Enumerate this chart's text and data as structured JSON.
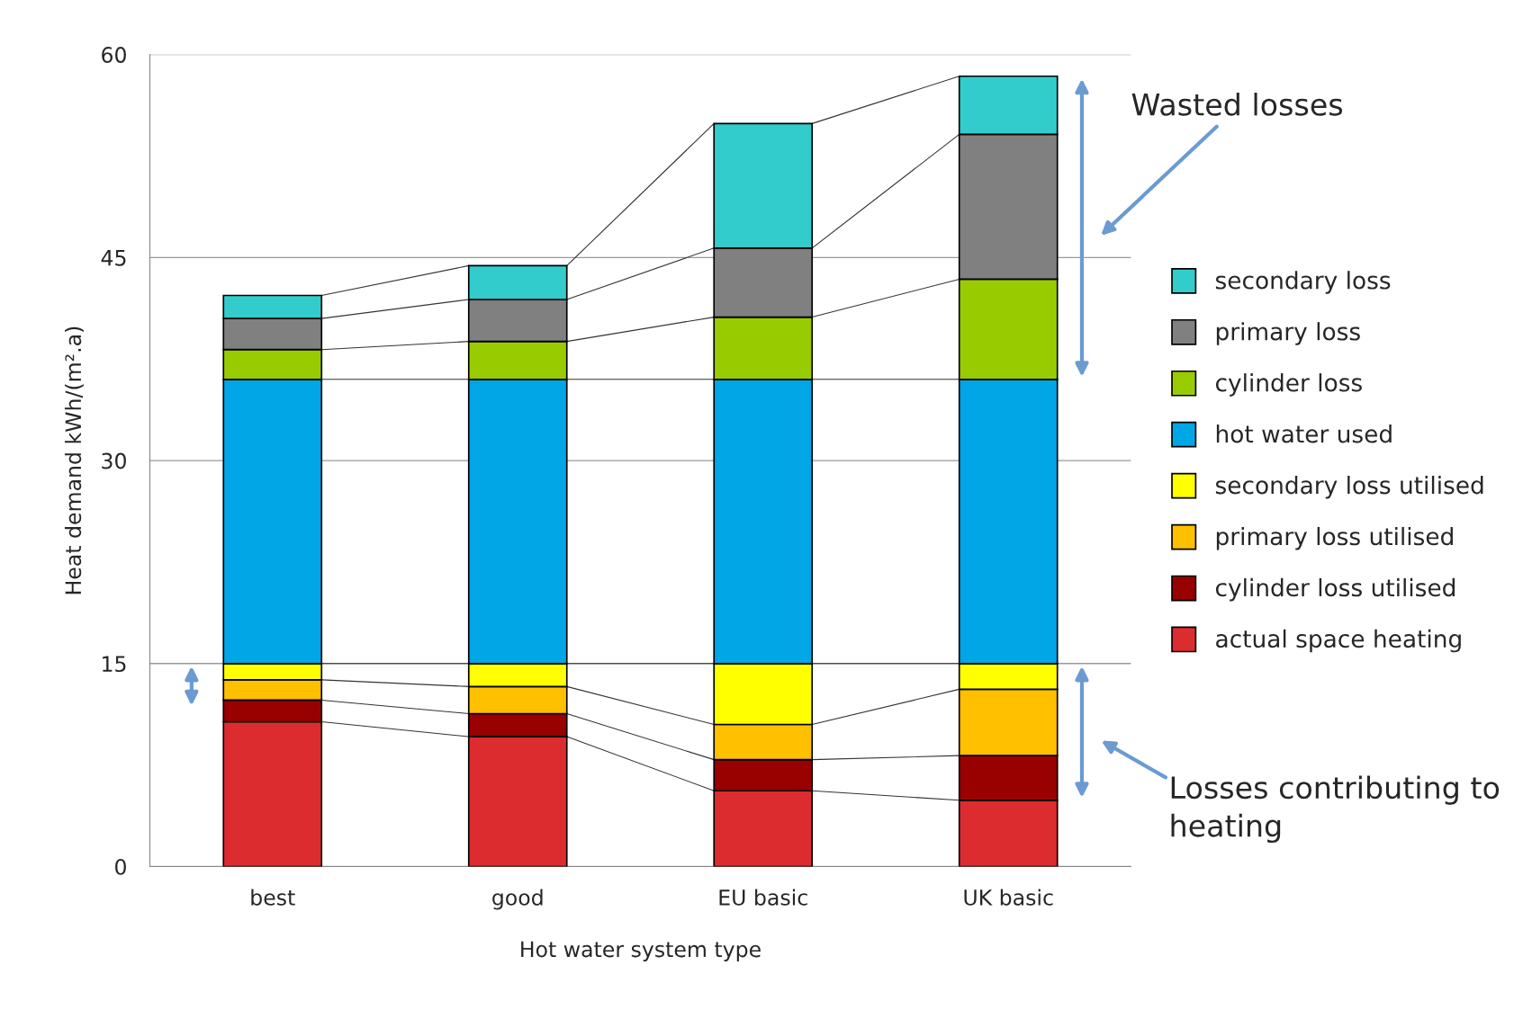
{
  "chart_data": {
    "type": "bar",
    "stacked": true,
    "xlabel": "Hot water system type",
    "ylabel": "Heat demand kWh/(m².a)",
    "categories": [
      "best",
      "good",
      "EU basic",
      "UK basic"
    ],
    "series": [
      {
        "name": "actual space heating",
        "color": "#dd2c2f",
        "values": [
          10.7,
          9.6,
          5.6,
          4.9
        ]
      },
      {
        "name": "cylinder loss utilised",
        "color": "#990000",
        "values": [
          1.6,
          1.7,
          2.3,
          3.3
        ]
      },
      {
        "name": "primary loss utilised",
        "color": "#ffc000",
        "values": [
          1.5,
          2.0,
          2.6,
          4.9
        ]
      },
      {
        "name": "secondary loss utilised",
        "color": "#ffff00",
        "values": [
          1.2,
          1.7,
          4.5,
          1.9
        ]
      },
      {
        "name": "hot water used",
        "color": "#00a6e6",
        "values": [
          21.0,
          21.0,
          21.0,
          21.0
        ]
      },
      {
        "name": "cylinder loss",
        "color": "#99cc00",
        "values": [
          2.2,
          2.8,
          4.6,
          7.4
        ]
      },
      {
        "name": "primary loss",
        "color": "#808080",
        "values": [
          2.3,
          3.1,
          5.1,
          10.7
        ]
      },
      {
        "name": "secondary loss",
        "color": "#33cccc",
        "values": [
          1.7,
          2.5,
          9.2,
          4.3
        ]
      }
    ],
    "ylim": [
      0,
      60
    ],
    "yticks": [
      0,
      15,
      30,
      45,
      60
    ],
    "grid": "y",
    "legend": "right",
    "annotations": [
      "Wasted losses",
      "Losses contributing to heating"
    ]
  }
}
